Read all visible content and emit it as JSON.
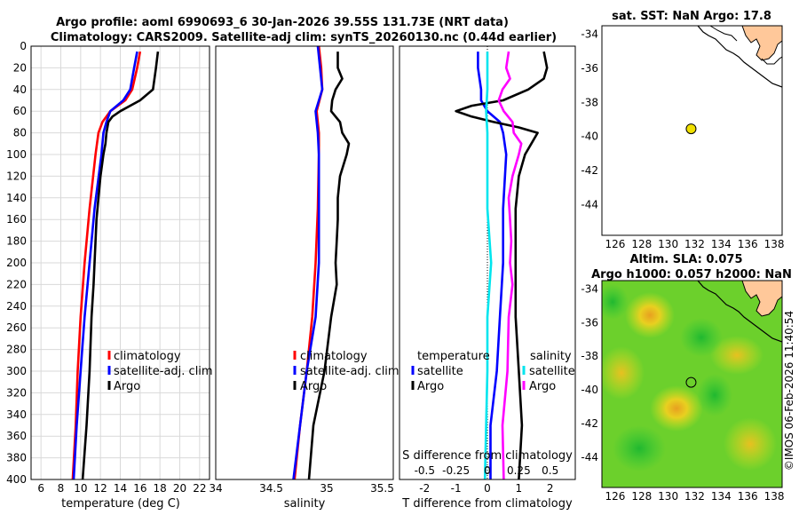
{
  "title": {
    "line1": "Argo profile: aoml 6990693_6 30-Jan-2026 39.55S 131.73E (NRT data)",
    "line2": "Climatology: CARS2009. Satellite-adj clim: synTS_20260130.nc (0.44d earlier)"
  },
  "colors": {
    "climatology": "#ff0000",
    "satellite": "#0000ff",
    "argo": "#000000",
    "sal_diff": "#ff00ff",
    "sat_sal_diff": "#00e5ee"
  },
  "chart_data": [
    {
      "type": "line",
      "id": "temperature",
      "xlabel": "temperature (deg C)",
      "ylabel": "",
      "xlim": [
        5,
        23
      ],
      "ylim": [
        400,
        0
      ],
      "xticks": [
        6,
        8,
        10,
        12,
        14,
        16,
        18,
        20,
        22
      ],
      "yticks": [
        0,
        20,
        40,
        60,
        80,
        100,
        120,
        140,
        160,
        180,
        200,
        220,
        240,
        260,
        280,
        300,
        320,
        340,
        360,
        380,
        400
      ],
      "legend": [
        "climatology",
        "satellite-adj. clim",
        "Argo"
      ],
      "series": [
        {
          "name": "climatology",
          "color": "#ff0000",
          "depth": [
            5,
            20,
            40,
            50,
            60,
            70,
            80,
            100,
            150,
            200,
            250,
            300,
            350,
            400
          ],
          "values": [
            16.0,
            15.7,
            15.2,
            14.5,
            13.0,
            12.2,
            11.8,
            11.5,
            10.9,
            10.4,
            10.0,
            9.7,
            9.5,
            9.2
          ]
        },
        {
          "name": "satellite-adj. clim",
          "color": "#0000ff",
          "depth": [
            5,
            20,
            40,
            50,
            60,
            70,
            80,
            100,
            150,
            200,
            250,
            300,
            350,
            400
          ],
          "values": [
            15.7,
            15.4,
            15.0,
            14.3,
            13.0,
            12.6,
            12.3,
            12.1,
            11.4,
            10.9,
            10.4,
            10.0,
            9.6,
            9.3
          ]
        },
        {
          "name": "Argo",
          "color": "#000000",
          "depth": [
            5,
            20,
            40,
            50,
            60,
            65,
            70,
            80,
            90,
            100,
            120,
            140,
            160,
            180,
            200,
            220,
            250,
            300,
            350,
            400
          ],
          "values": [
            17.8,
            17.6,
            17.3,
            16.0,
            14.0,
            13.2,
            12.8,
            12.6,
            12.5,
            12.3,
            12.0,
            11.8,
            11.6,
            11.5,
            11.4,
            11.3,
            11.1,
            10.9,
            10.6,
            10.2
          ]
        }
      ]
    },
    {
      "type": "line",
      "id": "salinity",
      "xlabel": "salinity",
      "xlim": [
        34,
        35.6
      ],
      "ylim": [
        400,
        0
      ],
      "xticks": [
        34,
        34.5,
        35,
        35.5
      ],
      "xticklabels": [
        "34",
        "34.5",
        "35",
        "35.5"
      ],
      "legend": [
        "climatology",
        "satellite-adj. clim",
        "Argo"
      ],
      "series": [
        {
          "name": "climatology",
          "color": "#ff0000",
          "depth": [
            0,
            20,
            40,
            60,
            80,
            100,
            150,
            200,
            250,
            300,
            350,
            400
          ],
          "values": [
            34.93,
            34.95,
            34.96,
            34.91,
            34.93,
            34.93,
            34.92,
            34.9,
            34.87,
            34.82,
            34.76,
            34.71
          ]
        },
        {
          "name": "satellite-adj. clim",
          "color": "#0000ff",
          "depth": [
            0,
            20,
            40,
            60,
            80,
            100,
            150,
            200,
            250,
            300,
            350,
            400
          ],
          "values": [
            34.92,
            34.94,
            34.96,
            34.9,
            34.92,
            34.93,
            34.93,
            34.93,
            34.9,
            34.82,
            34.76,
            34.7
          ]
        },
        {
          "name": "Argo",
          "color": "#000000",
          "depth": [
            5,
            20,
            30,
            40,
            50,
            60,
            70,
            80,
            90,
            100,
            120,
            140,
            160,
            180,
            200,
            220,
            250,
            300,
            350,
            400
          ],
          "values": [
            35.1,
            35.1,
            35.14,
            35.08,
            35.05,
            35.04,
            35.12,
            35.14,
            35.2,
            35.18,
            35.12,
            35.1,
            35.1,
            35.09,
            35.08,
            35.09,
            35.04,
            34.98,
            34.88,
            34.84
          ]
        }
      ]
    },
    {
      "type": "line",
      "id": "difference",
      "xlabel": "T difference from climatology",
      "top_label": "S difference from climatology",
      "xlim": [
        -2.8,
        2.8
      ],
      "ylim": [
        400,
        0
      ],
      "xticks": [
        -2,
        -1,
        0,
        1,
        2
      ],
      "s_ticks": [
        -0.5,
        -0.25,
        0,
        0.25,
        0.5
      ],
      "s_ticklabels": [
        "-0.5",
        "-0.25",
        "0",
        "0.25",
        "0.5"
      ],
      "legend_left_title": "temperature",
      "legend_right_title": "salinity",
      "legend_left": [
        "satellite",
        "Argo"
      ],
      "legend_right": [
        "satellite",
        "Argo"
      ],
      "series": [
        {
          "name": "satellite T",
          "color": "#0000ff",
          "depth": [
            5,
            20,
            40,
            50,
            60,
            70,
            80,
            100,
            150,
            200,
            250,
            300,
            350,
            400
          ],
          "values": [
            -0.3,
            -0.3,
            -0.2,
            -0.2,
            0,
            0.4,
            0.5,
            0.6,
            0.5,
            0.5,
            0.4,
            0.3,
            0.1,
            0.1
          ]
        },
        {
          "name": "Argo T",
          "color": "#000000",
          "depth": [
            5,
            20,
            30,
            40,
            50,
            55,
            60,
            65,
            70,
            75,
            80,
            90,
            100,
            120,
            150,
            200,
            250,
            300,
            350,
            400
          ],
          "values": [
            1.8,
            1.9,
            1.8,
            1.3,
            0.5,
            -0.5,
            -1.0,
            -0.5,
            0.2,
            1.0,
            1.6,
            1.4,
            1.2,
            1.0,
            0.9,
            0.9,
            0.9,
            1.0,
            1.1,
            1.0
          ]
        },
        {
          "name": "satellite S",
          "color": "#00e5ee",
          "depth": [
            5,
            20,
            40,
            60,
            80,
            100,
            150,
            200,
            250,
            300,
            350,
            400
          ],
          "values": [
            0.0,
            0.0,
            0.0,
            -0.01,
            0.0,
            0.0,
            0.0,
            0.03,
            0.0,
            0.0,
            -0.01,
            -0.02
          ]
        },
        {
          "name": "Argo S",
          "color": "#ff00ff",
          "depth": [
            5,
            20,
            30,
            40,
            50,
            60,
            70,
            80,
            90,
            100,
            120,
            140,
            160,
            180,
            200,
            220,
            250,
            300,
            350,
            400
          ],
          "values": [
            0.17,
            0.15,
            0.18,
            0.12,
            0.09,
            0.13,
            0.2,
            0.21,
            0.27,
            0.25,
            0.2,
            0.17,
            0.18,
            0.19,
            0.18,
            0.2,
            0.17,
            0.16,
            0.12,
            0.13
          ]
        }
      ]
    }
  ],
  "map_top": {
    "title": "sat. SST: NaN Argo: 17.8",
    "yticks": [
      "-34",
      "-36",
      "-38",
      "-40",
      "-42",
      "-44"
    ],
    "xticks": [
      "126",
      "128",
      "130",
      "132",
      "134",
      "136",
      "138"
    ],
    "marker_lon": 131.73,
    "marker_lat": -39.55
  },
  "map_bottom": {
    "title1": "Altim. SLA: 0.075",
    "title2": "Argo h1000: 0.057 h2000: NaN",
    "yticks": [
      "-34",
      "-36",
      "-38",
      "-40",
      "-42",
      "-44"
    ],
    "xticks": [
      "126",
      "128",
      "130",
      "132",
      "134",
      "136",
      "138"
    ],
    "marker_lon": 131.73,
    "marker_lat": -39.55
  },
  "watermark": "©IMOS 06-Feb-2026 11:40:54"
}
